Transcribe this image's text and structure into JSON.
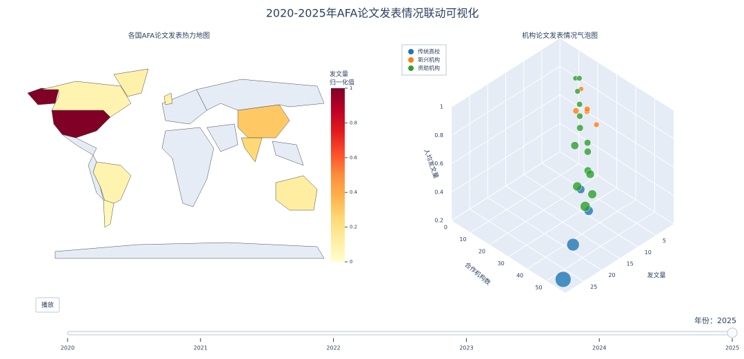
{
  "title": "2020-2025年AFA论文发表情况联动可视化",
  "play_button": "播放",
  "slider": {
    "prefix": "年份：",
    "value": 2025,
    "steps": [
      2020,
      2021,
      2022,
      2023,
      2024,
      2025
    ]
  },
  "chart_data": [
    {
      "type": "choropleth",
      "title": "各国AFA论文发表热力地图",
      "values": [
        1,
        0.08,
        0.1,
        0.08,
        0.05,
        0.1,
        0.3,
        0.25,
        0.12
      ],
      "colorscale": [
        "#ffffcc",
        "#ffeda0",
        "#fed976",
        "#feb24c",
        "#fd8d3c",
        "#fc4e2a",
        "#e31a1c",
        "#bd0026",
        "#800026"
      ],
      "colorbar_title": [
        "发文量",
        "归一化值"
      ],
      "zlim": [
        0,
        1
      ],
      "zticks": [
        0,
        0.2,
        0.4,
        0.6,
        0.8,
        1
      ]
    },
    {
      "type": "scatter3d",
      "title": "机构论文发表情况气泡图",
      "xlabel": "发文量",
      "ylabel": "合作机构数",
      "zlabel": "人均发文量",
      "xlim": [
        0,
        30
      ],
      "ylim": [
        0,
        60
      ],
      "zlim": [
        0.2,
        1
      ],
      "xticks": [
        5,
        10,
        15,
        20,
        25
      ],
      "yticks": [
        0,
        10,
        20,
        30,
        40,
        50
      ],
      "zticks": [
        0.2,
        0.4,
        0.6,
        0.8,
        1
      ],
      "series": [
        {
          "name": "传统高校",
          "color": "#1f77b4",
          "x": [
            28,
            20,
            12,
            10
          ],
          "y": [
            55,
            45,
            38,
            30
          ],
          "z": [
            0.22,
            0.25,
            0.3,
            0.35
          ]
        },
        {
          "name": "新兴机构",
          "color": "#ff7f0e",
          "x": [
            3,
            4,
            2,
            3,
            5
          ],
          "y": [
            20,
            22,
            15,
            25,
            18
          ],
          "z": [
            0.7,
            0.75,
            0.8,
            0.65,
            0.72
          ]
        },
        {
          "name": "资助机构",
          "color": "#2ca02c",
          "x": [
            8,
            10,
            12,
            7,
            9,
            6,
            5,
            4,
            3,
            11,
            14,
            6,
            2,
            3
          ],
          "y": [
            30,
            35,
            32,
            28,
            25,
            22,
            20,
            18,
            15,
            38,
            40,
            26,
            12,
            16
          ],
          "z": [
            0.45,
            0.5,
            0.42,
            0.55,
            0.6,
            0.65,
            0.7,
            0.75,
            0.8,
            0.4,
            0.38,
            0.58,
            0.85,
            0.9
          ]
        }
      ]
    }
  ]
}
